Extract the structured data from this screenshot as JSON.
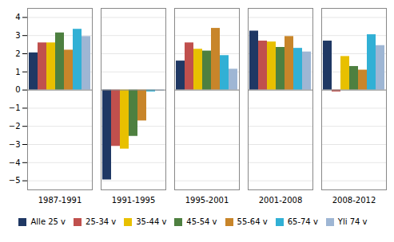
{
  "chart_data": {
    "type": "bar",
    "categories": [
      "1987-1991",
      "1991-1995",
      "1995-2001",
      "2001-2008",
      "2008-2012"
    ],
    "series": [
      {
        "name": "Alle 25 v",
        "color": "#1f3864",
        "values": [
          2.05,
          -4.95,
          1.6,
          3.25,
          2.7
        ]
      },
      {
        "name": "25-34 v",
        "color": "#c0504d",
        "values": [
          2.6,
          -3.1,
          2.6,
          2.7,
          -0.1
        ]
      },
      {
        "name": "35-44 v",
        "color": "#e8c000",
        "values": [
          2.6,
          -3.25,
          2.25,
          2.65,
          1.85
        ]
      },
      {
        "name": "45-54 v",
        "color": "#4e8040",
        "values": [
          3.15,
          -2.55,
          2.15,
          2.35,
          1.3
        ]
      },
      {
        "name": "55-64 v",
        "color": "#c8852a",
        "values": [
          2.2,
          -1.7,
          3.4,
          2.95,
          1.1
        ]
      },
      {
        "name": "65-74 v",
        "color": "#31b0d5",
        "values": [
          3.35,
          -0.1,
          1.9,
          2.3,
          3.05
        ]
      },
      {
        "name": "Yli 74 v",
        "color": "#9eb6d4",
        "values": [
          2.95,
          -0.05,
          1.15,
          2.1,
          2.45
        ]
      }
    ],
    "ylim": [
      -5.5,
      4.5
    ],
    "yticks": [
      -5,
      -4,
      -3,
      -2,
      -1,
      0,
      1,
      2,
      3,
      4
    ],
    "grid": true,
    "legend": "bottom"
  }
}
